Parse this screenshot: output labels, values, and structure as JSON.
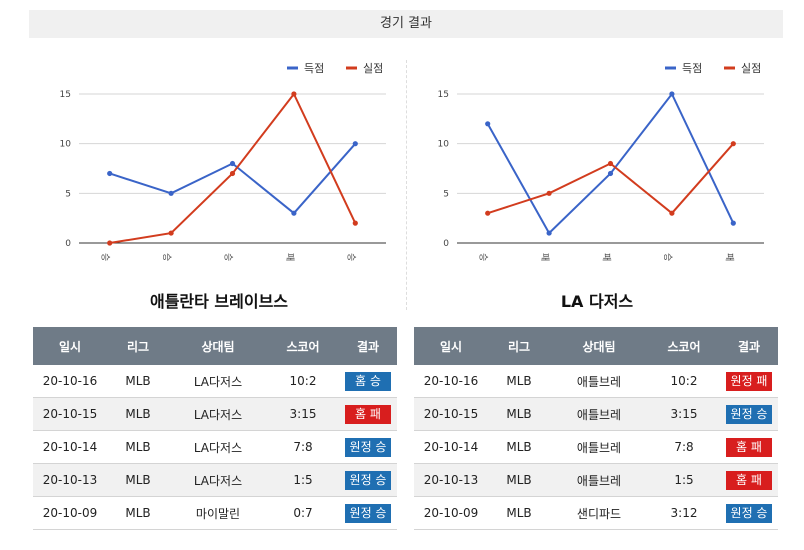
{
  "header": {
    "title": "경기 결과"
  },
  "colors": {
    "scored": "#3a64c8",
    "conceded": "#d23c1e",
    "win_badge": "#1f6fb2",
    "loss_badge": "#d81e1e",
    "table_header": "#6f7b87"
  },
  "chart_data": [
    {
      "type": "line",
      "title": "애틀란타 브레이브스",
      "categories": [
        "승",
        "승",
        "승",
        "패",
        "승"
      ],
      "series": [
        {
          "name": "득점",
          "values": [
            7,
            5,
            8,
            3,
            10
          ]
        },
        {
          "name": "실점",
          "values": [
            0,
            1,
            7,
            15,
            2
          ]
        }
      ],
      "yticks": [
        "0",
        "5",
        "10",
        "15"
      ],
      "ylim": [
        0,
        15
      ],
      "grid": true,
      "legend": "top-right"
    },
    {
      "type": "line",
      "title": "LA 다저스",
      "categories": [
        "승",
        "패",
        "패",
        "승",
        "패"
      ],
      "series": [
        {
          "name": "득점",
          "values": [
            12,
            1,
            7,
            15,
            2
          ]
        },
        {
          "name": "실점",
          "values": [
            3,
            5,
            8,
            3,
            10
          ]
        }
      ],
      "yticks": [
        "0",
        "5",
        "10",
        "15"
      ],
      "ylim": [
        0,
        15
      ],
      "grid": true,
      "legend": "top-right"
    }
  ],
  "tables": [
    {
      "headers": [
        "일시",
        "리그",
        "상대팀",
        "스코어",
        "결과"
      ],
      "rows": [
        {
          "date": "20-10-16",
          "league": "MLB",
          "opponent": "LA다저스",
          "score": "10:2",
          "result": "홈 승",
          "outcome": "win"
        },
        {
          "date": "20-10-15",
          "league": "MLB",
          "opponent": "LA다저스",
          "score": "3:15",
          "result": "홈 패",
          "outcome": "loss"
        },
        {
          "date": "20-10-14",
          "league": "MLB",
          "opponent": "LA다저스",
          "score": "7:8",
          "result": "원정 승",
          "outcome": "win"
        },
        {
          "date": "20-10-13",
          "league": "MLB",
          "opponent": "LA다저스",
          "score": "1:5",
          "result": "원정 승",
          "outcome": "win"
        },
        {
          "date": "20-10-09",
          "league": "MLB",
          "opponent": "마이말린",
          "score": "0:7",
          "result": "원정 승",
          "outcome": "win"
        }
      ]
    },
    {
      "headers": [
        "일시",
        "리그",
        "상대팀",
        "스코어",
        "결과"
      ],
      "rows": [
        {
          "date": "20-10-16",
          "league": "MLB",
          "opponent": "애틀브레",
          "score": "10:2",
          "result": "원정 패",
          "outcome": "loss"
        },
        {
          "date": "20-10-15",
          "league": "MLB",
          "opponent": "애틀브레",
          "score": "3:15",
          "result": "원정 승",
          "outcome": "win"
        },
        {
          "date": "20-10-14",
          "league": "MLB",
          "opponent": "애틀브레",
          "score": "7:8",
          "result": "홈 패",
          "outcome": "loss"
        },
        {
          "date": "20-10-13",
          "league": "MLB",
          "opponent": "애틀브레",
          "score": "1:5",
          "result": "홈 패",
          "outcome": "loss"
        },
        {
          "date": "20-10-09",
          "league": "MLB",
          "opponent": "샌디파드",
          "score": "3:12",
          "result": "원정 승",
          "outcome": "win"
        }
      ]
    }
  ]
}
